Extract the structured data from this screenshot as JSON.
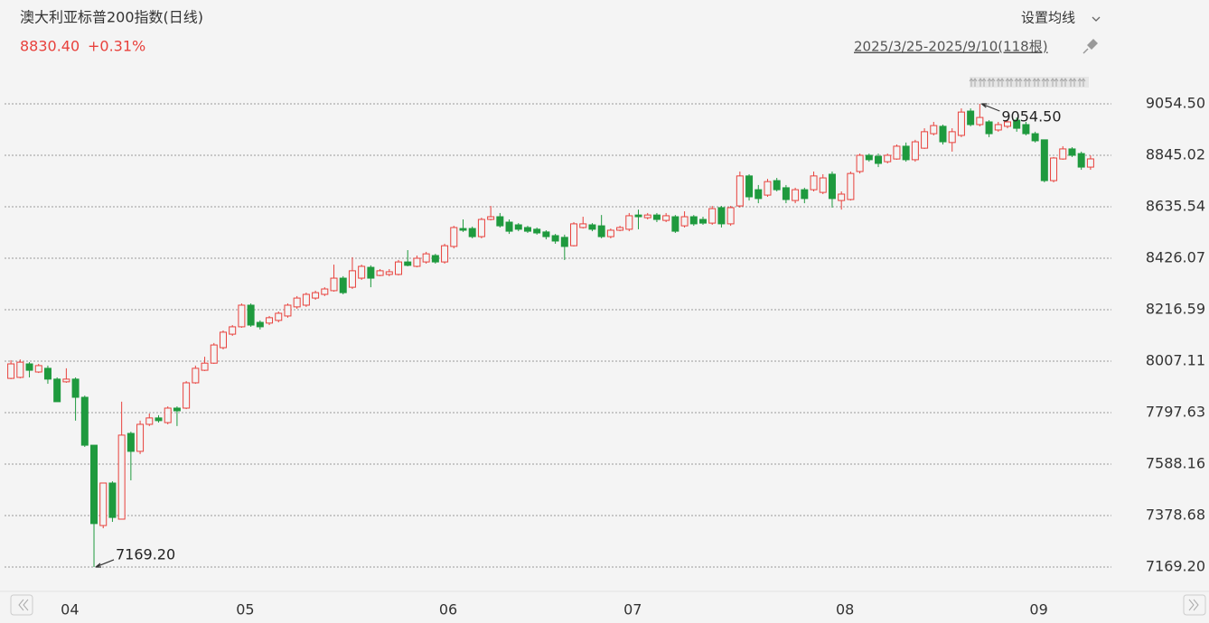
{
  "chart_data": {
    "type": "candlestick",
    "title": "澳大利亚标普200指数(日线)",
    "last_price": "8830.40",
    "change": "+0.31%",
    "settings_button": "设置均线",
    "range_label": "2025/3/25-2025/9/10(118根)",
    "annotations": {
      "max": "9054.50",
      "min": "7169.20"
    },
    "up_color": "#e8413c",
    "down_color": "#1f9a3e",
    "grid": true,
    "ylim": [
      7088.3,
      9128.0
    ],
    "yticks": [
      {
        "value": 9054.5,
        "label": "9054.50"
      },
      8845.02,
      8635.54,
      8426.07,
      8216.59,
      8007.11,
      7797.63,
      7588.16,
      7378.68,
      {
        "value": 7169.2,
        "label": "7169.20"
      }
    ],
    "categories": [
      null,
      null,
      null,
      null,
      null,
      "04",
      null,
      null,
      null,
      null,
      null,
      null,
      null,
      null,
      null,
      null,
      null,
      null,
      null,
      null,
      null,
      null,
      null,
      null,
      "05",
      null,
      null,
      null,
      null,
      null,
      null,
      null,
      null,
      null,
      null,
      null,
      null,
      null,
      null,
      null,
      null,
      null,
      null,
      null,
      null,
      null,
      "06",
      null,
      null,
      null,
      null,
      null,
      null,
      null,
      null,
      null,
      null,
      null,
      null,
      null,
      null,
      null,
      null,
      null,
      null,
      null,
      "07",
      null,
      null,
      null,
      null,
      null,
      null,
      null,
      null,
      null,
      null,
      null,
      null,
      null,
      null,
      null,
      null,
      null,
      null,
      null,
      null,
      null,
      null,
      "08",
      null,
      null,
      null,
      null,
      null,
      null,
      null,
      null,
      null,
      null,
      null,
      null,
      null,
      null,
      null,
      null,
      null,
      null,
      null,
      null,
      "09",
      null,
      null,
      null,
      null,
      null,
      null,
      null
    ],
    "open": [
      7937,
      7941,
      7996,
      7963,
      7978,
      7934,
      7923,
      7934,
      7860,
      7665,
      7338,
      7511,
      7364,
      7713,
      7640,
      7750,
      7776,
      7757,
      7816,
      7816,
      7919,
      7970,
      7999,
      8062,
      8117,
      8147,
      8235,
      8165,
      8162,
      8173,
      8191,
      8228,
      8235,
      8264,
      8279,
      8294,
      8345,
      8308,
      8345,
      8389,
      8356,
      8360,
      8360,
      8411,
      8393,
      8411,
      8437,
      8411,
      8474,
      8547,
      8547,
      8514,
      8584,
      8595,
      8573,
      8562,
      8551,
      8544,
      8533,
      8518,
      8511,
      8477,
      8551,
      8562,
      8558,
      8514,
      8540,
      8544,
      8602,
      8591,
      8602,
      8580,
      8595,
      8558,
      8595,
      8584,
      8569,
      8632,
      8566,
      8639,
      8761,
      8705,
      8683,
      8742,
      8713,
      8661,
      8705,
      8705,
      8694,
      8768,
      8661,
      8665,
      8779,
      8845,
      8841,
      8819,
      8830,
      8882,
      8827,
      8874,
      8933,
      8963,
      8897,
      8926,
      9025,
      8970,
      8981,
      8948,
      8963,
      8988,
      8970,
      8933,
      8908,
      8742,
      8830,
      8871,
      8852,
      8797
    ],
    "high": [
      8011,
      8014,
      8003,
      7996,
      7989,
      7941,
      7978,
      7941,
      7867,
      7665,
      7511,
      7518,
      7842,
      7720,
      7765,
      7794,
      7787,
      7823,
      7823,
      7926,
      7989,
      8025,
      8081,
      8132,
      8154,
      8242,
      8242,
      8173,
      8191,
      8209,
      8242,
      8272,
      8286,
      8294,
      8308,
      8400,
      8353,
      8430,
      8400,
      8397,
      8382,
      8382,
      8419,
      8459,
      8437,
      8452,
      8444,
      8485,
      8558,
      8584,
      8555,
      8591,
      8639,
      8610,
      8584,
      8569,
      8558,
      8551,
      8540,
      8525,
      8522,
      8573,
      8595,
      8569,
      8602,
      8547,
      8558,
      8610,
      8624,
      8610,
      8610,
      8610,
      8602,
      8617,
      8602,
      8595,
      8639,
      8639,
      8639,
      8779,
      8768,
      8724,
      8749,
      8753,
      8724,
      8713,
      8713,
      8779,
      8768,
      8779,
      8698,
      8779,
      8852,
      8852,
      8852,
      8852,
      8889,
      8897,
      8908,
      8955,
      8981,
      8970,
      8955,
      9036,
      9036,
      9054.5,
      8988,
      8981,
      8988,
      8999,
      8981,
      8941,
      8908,
      8838,
      8882,
      8878,
      8860,
      8845
    ],
    "low": [
      7934,
      7937,
      7941,
      7959,
      7915,
      7842,
      7919,
      7765,
      7658,
      7169.2,
      7327,
      7353,
      7364,
      7522,
      7629,
      7743,
      7757,
      7750,
      7743,
      7812,
      7915,
      7967,
      7996,
      8055,
      8110,
      8143,
      8147,
      8136,
      8154,
      8165,
      8184,
      8220,
      8228,
      8257,
      8272,
      8290,
      8279,
      8301,
      8338,
      8308,
      8353,
      8353,
      8356,
      8393,
      8389,
      8404,
      8404,
      8404,
      8466,
      8533,
      8507,
      8507,
      8580,
      8551,
      8525,
      8536,
      8529,
      8522,
      8503,
      8485,
      8419,
      8474,
      8547,
      8536,
      8507,
      8507,
      8536,
      8536,
      8544,
      8584,
      8573,
      8573,
      8529,
      8551,
      8558,
      8562,
      8562,
      8551,
      8558,
      8632,
      8661,
      8650,
      8676,
      8698,
      8650,
      8650,
      8650,
      8698,
      8687,
      8632,
      8624,
      8661,
      8771,
      8819,
      8797,
      8812,
      8827,
      8819,
      8819,
      8871,
      8926,
      8889,
      8860,
      8919,
      8963,
      8963,
      8919,
      8941,
      8955,
      8941,
      8926,
      8897,
      8735,
      8735,
      8827,
      8838,
      8786,
      8786
    ],
    "close": [
      7996,
      8003,
      7970,
      7989,
      7934,
      7842,
      7934,
      7860,
      7665,
      7346,
      7511,
      7371,
      7706,
      7640,
      7750,
      7776,
      7765,
      7816,
      7805,
      7919,
      7978,
      7999,
      8073,
      8125,
      8147,
      8235,
      8154,
      8147,
      8184,
      8202,
      8235,
      8264,
      8279,
      8286,
      8301,
      8345,
      8286,
      8375,
      8393,
      8345,
      8375,
      8371,
      8411,
      8397,
      8426,
      8444,
      8411,
      8477,
      8551,
      8540,
      8514,
      8584,
      8595,
      8558,
      8536,
      8544,
      8536,
      8529,
      8514,
      8496,
      8474,
      8566,
      8566,
      8544,
      8514,
      8540,
      8551,
      8599,
      8595,
      8602,
      8584,
      8599,
      8536,
      8595,
      8566,
      8569,
      8628,
      8566,
      8632,
      8761,
      8676,
      8669,
      8738,
      8705,
      8665,
      8705,
      8669,
      8761,
      8753,
      8669,
      8687,
      8771,
      8845,
      8827,
      8812,
      8845,
      8882,
      8827,
      8900,
      8941,
      8966,
      8900,
      8941,
      9021,
      8970,
      8999,
      8933,
      8970,
      8981,
      8955,
      8933,
      8904,
      8742,
      8834,
      8871,
      8845,
      8797,
      8830.4
    ]
  }
}
